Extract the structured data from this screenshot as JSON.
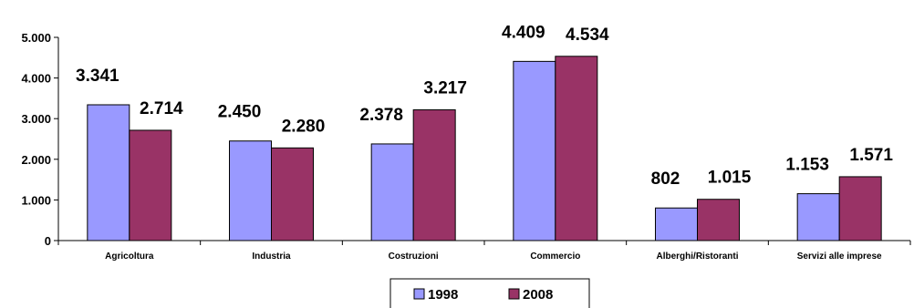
{
  "chart_data": {
    "type": "bar",
    "categories": [
      "Agricoltura",
      "Industria",
      "Costruzioni",
      "Commercio",
      "Alberghi/Ristoranti",
      "Servizi alle imprese"
    ],
    "series": [
      {
        "name": "1998",
        "values": [
          3341,
          2450,
          2378,
          4409,
          802,
          1153
        ],
        "labels": [
          "3.341",
          "2.450",
          "2.378",
          "4.409",
          "802",
          "1.153"
        ],
        "color": "#9999ff"
      },
      {
        "name": "2008",
        "values": [
          2714,
          2280,
          3217,
          4534,
          1015,
          1571
        ],
        "labels": [
          "2.714",
          "2.280",
          "3.217",
          "4.534",
          "1.015",
          "1.571"
        ],
        "color": "#993366"
      }
    ],
    "yticks": [
      0,
      1000,
      2000,
      3000,
      4000,
      5000
    ],
    "ytick_labels": [
      "0",
      "1.000",
      "2.000",
      "3.000",
      "4.000",
      "5.000"
    ],
    "ylim": [
      0,
      5000
    ],
    "legend": "bottom-center",
    "grid": false
  }
}
